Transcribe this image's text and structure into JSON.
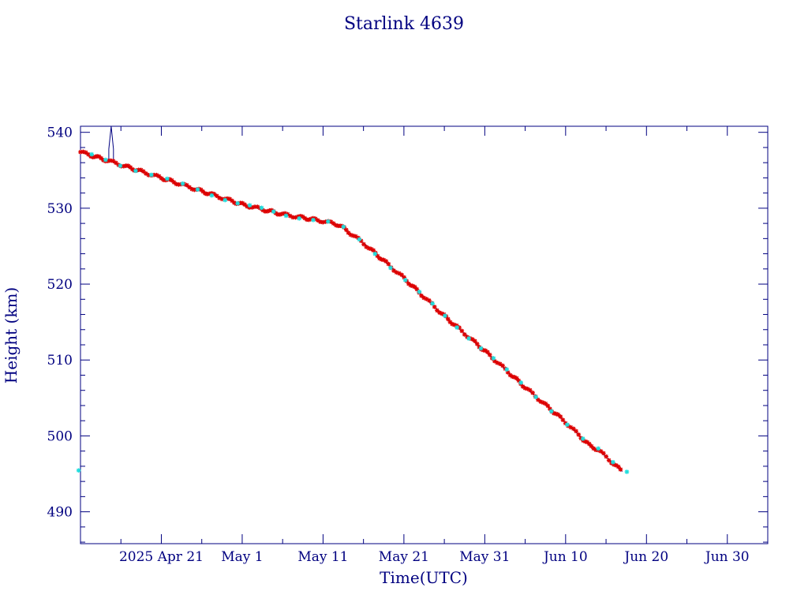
{
  "chart_data": {
    "type": "scatter",
    "title": "Starlink 4639",
    "xlabel": "Time(UTC)",
    "ylabel": "Height (km)",
    "x_unit": "days",
    "xlim": [
      "2025-04-11",
      "2025-07-05"
    ],
    "ylim": [
      485.8,
      540.8
    ],
    "x_ticks": [
      {
        "date": "2025-04-21",
        "label": "2025 Apr 21"
      },
      {
        "date": "2025-05-01",
        "label": "May  1"
      },
      {
        "date": "2025-05-11",
        "label": "May 11"
      },
      {
        "date": "2025-05-21",
        "label": "May 21"
      },
      {
        "date": "2025-05-31",
        "label": "May 31"
      },
      {
        "date": "2025-06-10",
        "label": "Jun 10"
      },
      {
        "date": "2025-06-20",
        "label": "Jun 20"
      },
      {
        "date": "2025-06-30",
        "label": "Jun 30"
      }
    ],
    "y_ticks": [
      490,
      500,
      510,
      520,
      530,
      540
    ],
    "grid": false,
    "colors": {
      "axis": "#000080",
      "line": "#000080",
      "series_red": "#dd0000",
      "series_cyan": "#22dddd"
    },
    "line_trend": [
      {
        "x": "2025-04-11",
        "y": 537.4
      },
      {
        "x": "2025-04-14",
        "y": 536.4
      },
      {
        "x": "2025-04-14T12:00",
        "y": 536.2
      },
      {
        "x": "2025-04-14T12:00",
        "y": 537.8
      },
      {
        "x": "2025-04-14T19:00",
        "y": 540.8
      },
      {
        "x": "2025-04-15T02:00",
        "y": 537.8
      },
      {
        "x": "2025-04-15T02:00",
        "y": 536.0
      },
      {
        "x": "2025-04-21",
        "y": 534.0
      },
      {
        "x": "2025-05-01",
        "y": 530.5
      },
      {
        "x": "2025-05-06",
        "y": 529.2
      },
      {
        "x": "2025-05-11",
        "y": 528.3
      },
      {
        "x": "2025-05-13",
        "y": 527.8
      },
      {
        "x": "2025-05-16",
        "y": 525.4
      },
      {
        "x": "2025-05-21",
        "y": 520.8
      },
      {
        "x": "2025-05-26",
        "y": 515.8
      },
      {
        "x": "2025-05-31",
        "y": 511.2
      },
      {
        "x": "2025-06-05",
        "y": 506.4
      },
      {
        "x": "2025-06-10",
        "y": 501.8
      },
      {
        "x": "2025-06-13",
        "y": 498.7
      },
      {
        "x": "2025-06-14",
        "y": 498.2
      },
      {
        "x": "2025-06-17",
        "y": 495.3
      }
    ],
    "series": [
      {
        "marker": "star",
        "color": "#dd0000",
        "x_start": "2025-04-11",
        "x_end": "2025-06-16T18:00",
        "count": 230
      },
      {
        "marker": "star",
        "color": "#22dddd",
        "x_start": "2025-04-11T06:00",
        "x_end": "2025-06-17",
        "count": 40
      }
    ]
  }
}
